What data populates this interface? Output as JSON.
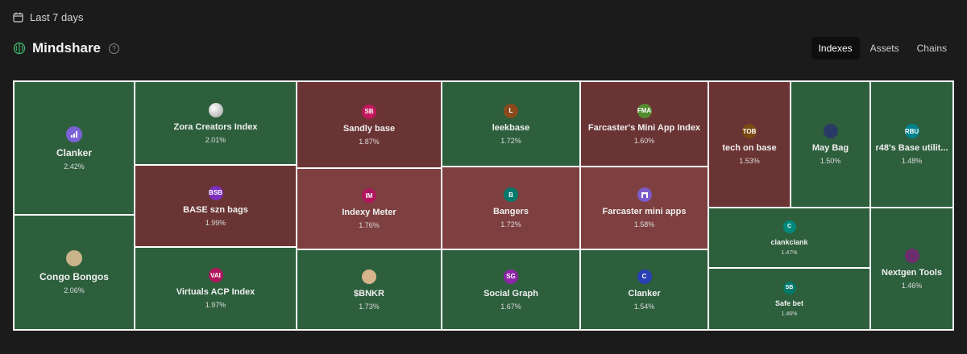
{
  "filter": {
    "range_label": "Last 7 days",
    "icon": "calendar-icon"
  },
  "header": {
    "title": "Mindshare",
    "icon": "brain-icon",
    "help": "?"
  },
  "tabs": [
    {
      "label": "Indexes",
      "active": true
    },
    {
      "label": "Assets",
      "active": false
    },
    {
      "label": "Chains",
      "active": false
    }
  ],
  "tiles": [
    {
      "name": "Clanker",
      "pct": "2.42%",
      "logo": "",
      "logo_icon": "bar-chart-icon",
      "logo_color": "#7b62d6",
      "trend": "up"
    },
    {
      "name": "Congo Bongos",
      "pct": "2.06%",
      "logo": "",
      "logo_icon": "congo-bongos-avatar-icon",
      "logo_color": "#c9b48a",
      "trend": "up"
    },
    {
      "name": "Zora Creators Index",
      "pct": "2.01%",
      "logo": "",
      "logo_icon": "zora-orb-icon",
      "logo_color": "#bdbdbd",
      "trend": "up"
    },
    {
      "name": "BASE szn bags",
      "pct": "1.99%",
      "logo": "BSB",
      "logo_color": "#7a2fc0",
      "trend": "down"
    },
    {
      "name": "Virtuals ACP Index",
      "pct": "1.97%",
      "logo": "VAI",
      "logo_color": "#b0165e",
      "trend": "up"
    },
    {
      "name": "Sandly base",
      "pct": "1.87%",
      "logo": "SB",
      "logo_color": "#c2175b",
      "trend": "down"
    },
    {
      "name": "Indexy Meter",
      "pct": "1.76%",
      "logo": "IM",
      "logo_color": "#b0165e",
      "trend": "down"
    },
    {
      "name": "$BNKR",
      "pct": "1.73%",
      "logo": "",
      "logo_icon": "bnkr-avatar-icon",
      "logo_color": "#d8b48a",
      "trend": "up"
    },
    {
      "name": "leekbase",
      "pct": "1.72%",
      "logo": "L",
      "logo_color": "#8b4a1c",
      "trend": "up"
    },
    {
      "name": "Bangers",
      "pct": "1.72%",
      "logo": "B",
      "logo_color": "#00796b",
      "trend": "down"
    },
    {
      "name": "Social Graph",
      "pct": "1.67%",
      "logo": "SG",
      "logo_color": "#8e24aa",
      "trend": "up"
    },
    {
      "name": "Farcaster's Mini App Index",
      "pct": "1.60%",
      "logo": "FMA",
      "logo_color": "#558b2f",
      "trend": "down"
    },
    {
      "name": "Farcaster mini apps",
      "pct": "1.58%",
      "logo": "",
      "logo_icon": "farcaster-arch-icon",
      "logo_color": "#7c5ac9",
      "trend": "down"
    },
    {
      "name": "Clanker",
      "pct": "1.54%",
      "logo": "C",
      "logo_color": "#283fb5",
      "trend": "up"
    },
    {
      "name": "tech on base",
      "pct": "1.53%",
      "logo": "TOB",
      "logo_color": "#7a4a12",
      "trend": "down"
    },
    {
      "name": "May Bag",
      "pct": "1.50%",
      "logo": "",
      "logo_icon": "night-sky-avatar-icon",
      "logo_color": "#2a3a66",
      "trend": "up"
    },
    {
      "name": "r48's Base utilit...",
      "pct": "1.48%",
      "logo": "RBU",
      "logo_color": "#00838f",
      "trend": "up"
    },
    {
      "name": "clankclank",
      "pct": "1.47%",
      "logo": "C",
      "logo_color": "#00897b",
      "trend": "up"
    },
    {
      "name": "Safe bet",
      "pct": "1.46%",
      "logo": "SB",
      "logo_color": "#00796b",
      "trend": "up"
    },
    {
      "name": "Nextgen Tools",
      "pct": "1.46%",
      "logo": "",
      "logo_icon": "nextgen-avatar-icon",
      "logo_color": "#6a2d6e",
      "trend": "up"
    }
  ]
}
